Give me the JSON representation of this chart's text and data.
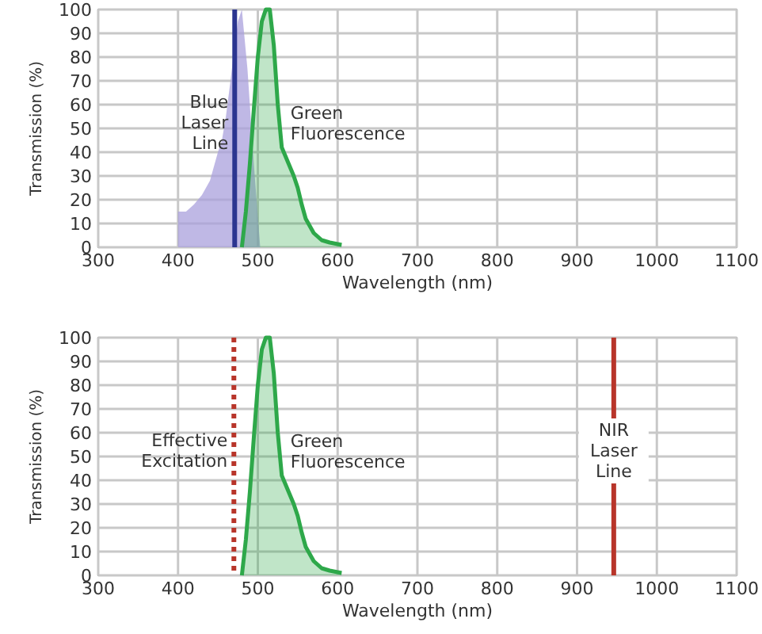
{
  "chart_data": [
    {
      "type": "area",
      "xlabel": "Wavelength (nm)",
      "ylabel": "Transmission (%)",
      "xlim": [
        300,
        1100
      ],
      "ylim": [
        0,
        100
      ],
      "xticks": [
        300,
        400,
        500,
        600,
        700,
        800,
        900,
        1000,
        1100
      ],
      "yticks": [
        0,
        10,
        20,
        30,
        40,
        50,
        60,
        70,
        80,
        90,
        100
      ],
      "grid": true,
      "series": [
        {
          "color": "#a9a0dc",
          "x": [
            400,
            400,
            410,
            420,
            430,
            440,
            450,
            455,
            460,
            465,
            470,
            475,
            480,
            487,
            495,
            503
          ],
          "values": [
            0,
            15,
            15,
            18,
            22,
            28,
            40,
            45,
            55,
            68,
            82,
            95,
            100,
            75,
            35,
            0
          ]
        },
        {
          "name": "Green Fluorescence",
          "color": "#2ea84a",
          "x": [
            480,
            485,
            490,
            495,
            500,
            505,
            510,
            515,
            520,
            525,
            530,
            535,
            540,
            545,
            550,
            555,
            560,
            570,
            580,
            590,
            605
          ],
          "values": [
            0,
            15,
            35,
            58,
            80,
            95,
            100,
            100,
            85,
            60,
            42,
            38,
            34,
            30,
            25,
            18,
            12,
            6,
            3,
            2,
            1
          ]
        }
      ],
      "ref_lines": [
        {
          "axis": "x",
          "value": 471,
          "label": "Blue Laser Line",
          "color": "#2b3590",
          "line_style": "solid"
        }
      ]
    },
    {
      "type": "area",
      "xlabel": "Wavelength (nm)",
      "ylabel": "Transmission (%)",
      "xlim": [
        300,
        1100
      ],
      "ylim": [
        0,
        100
      ],
      "xticks": [
        300,
        400,
        500,
        600,
        700,
        800,
        900,
        1000,
        1100
      ],
      "yticks": [
        0,
        10,
        20,
        30,
        40,
        50,
        60,
        70,
        80,
        90,
        100
      ],
      "grid": true,
      "series": [
        {
          "name": "Green Fluorescence",
          "color": "#2ea84a",
          "x": [
            480,
            485,
            490,
            495,
            500,
            505,
            510,
            515,
            520,
            525,
            530,
            535,
            540,
            545,
            550,
            555,
            560,
            570,
            580,
            590,
            605
          ],
          "values": [
            0,
            15,
            35,
            58,
            80,
            95,
            100,
            100,
            85,
            60,
            42,
            38,
            34,
            30,
            25,
            18,
            12,
            6,
            3,
            2,
            1
          ]
        }
      ],
      "ref_lines": [
        {
          "axis": "x",
          "value": 470,
          "label": "Effective Excitation",
          "color": "#b8352a",
          "line_style": "dotted"
        },
        {
          "axis": "x",
          "value": 946,
          "label": "NIR Laser Line",
          "color": "#b8352a",
          "line_style": "solid"
        }
      ]
    }
  ]
}
